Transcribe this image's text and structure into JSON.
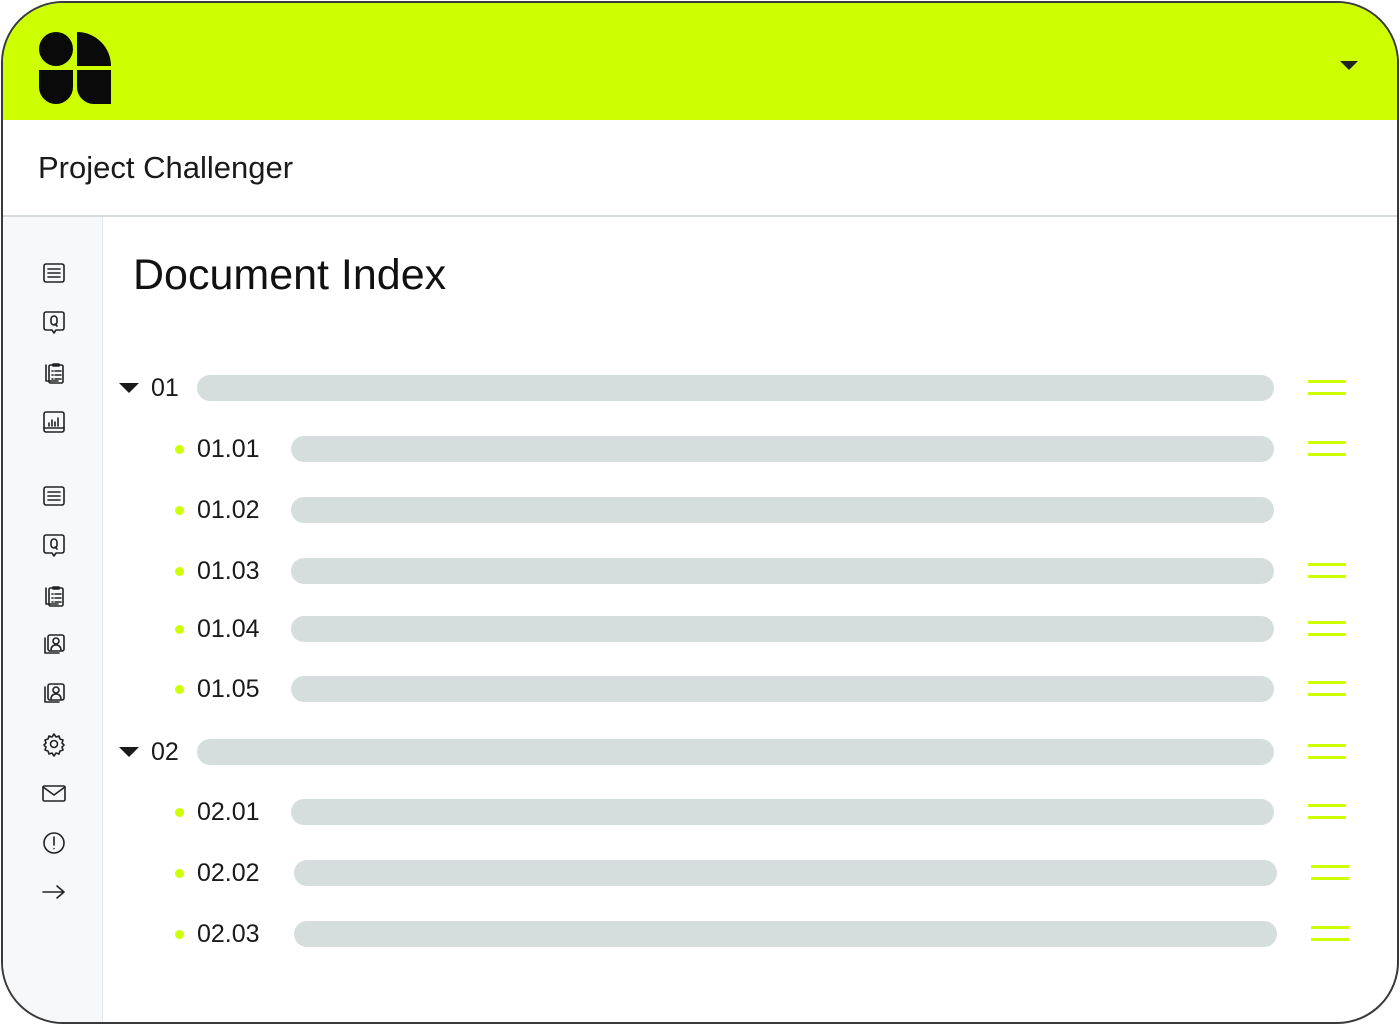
{
  "header": {
    "logo": "brand-logo",
    "accent": "#cdff00"
  },
  "project": {
    "title": "Project Challenger"
  },
  "main": {
    "title": "Document Index"
  },
  "sidebar": {
    "icons": [
      "document-list-icon",
      "question-bubble-icon",
      "clipboard-list-icon",
      "bar-chart-icon",
      "document-list-icon",
      "question-bubble-icon",
      "clipboard-list-icon",
      "user-gallery-icon",
      "user-gallery-icon",
      "gear-icon",
      "mail-icon",
      "alert-icon",
      "arrow-right-icon"
    ]
  },
  "index": [
    {
      "label": "01",
      "level": 1,
      "menu": true
    },
    {
      "label": "01.01",
      "level": 2,
      "menu": true
    },
    {
      "label": "01.02",
      "level": 2,
      "menu": false
    },
    {
      "label": "01.03",
      "level": 2,
      "menu": true
    },
    {
      "label": "01.04",
      "level": 2,
      "menu": true
    },
    {
      "label": "01.05",
      "level": 2,
      "menu": true
    },
    {
      "label": "02",
      "level": 1,
      "menu": true
    },
    {
      "label": "02.01",
      "level": 2,
      "menu": true
    },
    {
      "label": "02.02",
      "level": 2,
      "menu": true
    },
    {
      "label": "02.03",
      "level": 2,
      "menu": true
    }
  ]
}
